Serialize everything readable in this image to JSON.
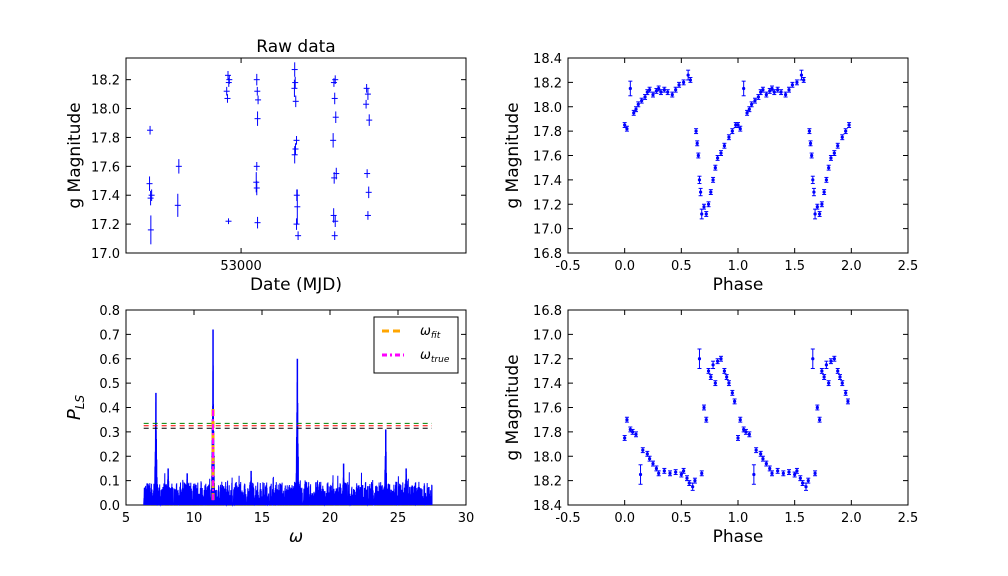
{
  "chart_data": [
    {
      "type": "scatter",
      "title": "Raw data",
      "xlabel": "Date (MJD)",
      "ylabel": "g Magnitude",
      "xlim": [
        52560,
        53860
      ],
      "ylim": [
        17.0,
        18.35
      ],
      "xticks": [
        53000
      ],
      "yticks": [
        17.0,
        17.2,
        17.4,
        17.6,
        17.8,
        18.0,
        18.2
      ],
      "inverted_y": false,
      "series": [
        {
          "color": "#0000ff",
          "marker": "plus-with-errorbar",
          "points": [
            [
              52652,
              17.85,
              0.03
            ],
            [
              52650,
              17.48,
              0.05
            ],
            [
              52654,
              17.38,
              0.05
            ],
            [
              52658,
              17.4,
              0.04
            ],
            [
              52655,
              17.16,
              0.1
            ],
            [
              52758,
              17.33,
              0.08
            ],
            [
              52762,
              17.6,
              0.05
            ],
            [
              52945,
              18.12,
              0.03
            ],
            [
              52950,
              18.23,
              0.03
            ],
            [
              52953,
              18.18,
              0.03
            ],
            [
              52948,
              18.07,
              0.03
            ],
            [
              52955,
              18.2,
              0.03
            ],
            [
              52952,
              17.22,
              0.02
            ],
            [
              53060,
              18.2,
              0.04
            ],
            [
              53062,
              18.12,
              0.03
            ],
            [
              53065,
              18.06,
              0.03
            ],
            [
              53063,
              17.93,
              0.05
            ],
            [
              53060,
              17.6,
              0.03
            ],
            [
              53058,
              17.49,
              0.07
            ],
            [
              53060,
              17.45,
              0.05
            ],
            [
              53063,
              17.21,
              0.04
            ],
            [
              53205,
              18.27,
              0.05
            ],
            [
              53207,
              18.18,
              0.04
            ],
            [
              53204,
              18.14,
              0.06
            ],
            [
              53209,
              18.05,
              0.04
            ],
            [
              53212,
              17.78,
              0.03
            ],
            [
              53205,
              17.68,
              0.06
            ],
            [
              53208,
              17.72,
              0.04
            ],
            [
              53215,
              17.32,
              0.12
            ],
            [
              53212,
              17.2,
              0.04
            ],
            [
              53218,
              17.12,
              0.03
            ],
            [
              53213,
              17.4,
              0.04
            ],
            [
              53355,
              18.18,
              0.03
            ],
            [
              53360,
              18.2,
              0.03
            ],
            [
              53358,
              18.07,
              0.04
            ],
            [
              53352,
              17.78,
              0.05
            ],
            [
              53362,
              17.94,
              0.04
            ],
            [
              53356,
              17.52,
              0.04
            ],
            [
              53354,
              17.26,
              0.05
            ],
            [
              53358,
              17.12,
              0.03
            ],
            [
              53364,
              17.55,
              0.04
            ],
            [
              53360,
              17.22,
              0.04
            ],
            [
              53480,
              18.14,
              0.03
            ],
            [
              53485,
              18.1,
              0.04
            ],
            [
              53478,
              18.03,
              0.03
            ],
            [
              53490,
              17.92,
              0.04
            ],
            [
              53482,
              17.55,
              0.03
            ],
            [
              53488,
              17.42,
              0.04
            ],
            [
              53485,
              17.26,
              0.03
            ]
          ]
        }
      ]
    },
    {
      "type": "scatter",
      "title": "",
      "xlabel": "Phase",
      "ylabel": "g Magnitude",
      "xlim": [
        -0.5,
        2.5
      ],
      "ylim": [
        16.8,
        18.4
      ],
      "xticks": [
        -0.5,
        0.0,
        0.5,
        1.0,
        1.5,
        2.0,
        2.5
      ],
      "yticks": [
        16.8,
        17.0,
        17.2,
        17.4,
        17.6,
        17.8,
        18.0,
        18.2,
        18.4
      ],
      "inverted_y": false,
      "series": [
        {
          "color": "#0000ff",
          "marker": "dot-with-errorbar",
          "points": [
            [
              0.0,
              17.85,
              0.02
            ],
            [
              0.02,
              17.82,
              0.02
            ],
            [
              0.05,
              18.15,
              0.06
            ],
            [
              0.08,
              17.95,
              0.02
            ],
            [
              0.1,
              17.98,
              0.02
            ],
            [
              0.12,
              18.02,
              0.02
            ],
            [
              0.15,
              18.05,
              0.02
            ],
            [
              0.18,
              18.08,
              0.02
            ],
            [
              0.2,
              18.12,
              0.02
            ],
            [
              0.22,
              18.14,
              0.02
            ],
            [
              0.25,
              18.1,
              0.02
            ],
            [
              0.28,
              18.13,
              0.02
            ],
            [
              0.3,
              18.15,
              0.02
            ],
            [
              0.32,
              18.12,
              0.02
            ],
            [
              0.35,
              18.14,
              0.02
            ],
            [
              0.38,
              18.12,
              0.02
            ],
            [
              0.42,
              18.1,
              0.02
            ],
            [
              0.45,
              18.14,
              0.02
            ],
            [
              0.48,
              18.18,
              0.02
            ],
            [
              0.52,
              18.2,
              0.02
            ],
            [
              0.56,
              18.26,
              0.04
            ],
            [
              0.58,
              18.22,
              0.02
            ],
            [
              0.63,
              17.8,
              0.02
            ],
            [
              0.64,
              17.7,
              0.02
            ],
            [
              0.65,
              17.6,
              0.02
            ],
            [
              0.66,
              17.4,
              0.03
            ],
            [
              0.67,
              17.3,
              0.03
            ],
            [
              0.68,
              17.12,
              0.04
            ],
            [
              0.7,
              17.18,
              0.02
            ],
            [
              0.72,
              17.12,
              0.02
            ],
            [
              0.74,
              17.2,
              0.02
            ],
            [
              0.76,
              17.3,
              0.02
            ],
            [
              0.78,
              17.4,
              0.02
            ],
            [
              0.8,
              17.5,
              0.02
            ],
            [
              0.82,
              17.58,
              0.02
            ],
            [
              0.85,
              17.62,
              0.02
            ],
            [
              0.88,
              17.68,
              0.02
            ],
            [
              0.92,
              17.75,
              0.02
            ],
            [
              0.95,
              17.8,
              0.02
            ],
            [
              0.98,
              17.85,
              0.02
            ]
          ]
        }
      ]
    },
    {
      "type": "line",
      "title": "",
      "xlabel": "ω",
      "ylabel": "P_LS",
      "xlim": [
        5,
        30
      ],
      "ylim": [
        0.0,
        0.8
      ],
      "xticks": [
        5,
        10,
        15,
        20,
        25,
        30
      ],
      "yticks": [
        0.0,
        0.1,
        0.2,
        0.3,
        0.4,
        0.5,
        0.6,
        0.7,
        0.8
      ],
      "periodogram_range": [
        6.3,
        27.5
      ],
      "peaks": [
        [
          7.2,
          0.46
        ],
        [
          11.4,
          0.72
        ],
        [
          17.6,
          0.6
        ],
        [
          24.1,
          0.31
        ],
        [
          8.1,
          0.15
        ],
        [
          9.5,
          0.13
        ],
        [
          14.2,
          0.14
        ],
        [
          21.0,
          0.17
        ],
        [
          25.6,
          0.15
        ]
      ],
      "noise_level": 0.06,
      "omega_fit": 11.4,
      "omega_true": 11.4,
      "thresholds": [
        0.335,
        0.325,
        0.315
      ],
      "threshold_colors": [
        "#008000",
        "#ff0000",
        "#000000"
      ],
      "legend": {
        "position": "top-right",
        "entries": [
          {
            "label_main": "ω",
            "label_sub": "fit",
            "color": "#ffa500",
            "style": "dashed"
          },
          {
            "label_main": "ω",
            "label_sub": "true",
            "color": "#ff00ff",
            "style": "dashdot"
          }
        ]
      },
      "series_color": "#0000ff"
    },
    {
      "type": "scatter",
      "title": "",
      "xlabel": "Phase",
      "ylabel": "g Magnitude",
      "xlim": [
        -0.5,
        2.5
      ],
      "ylim": [
        16.8,
        18.4
      ],
      "xticks": [
        -0.5,
        0.0,
        0.5,
        1.0,
        1.5,
        2.0,
        2.5
      ],
      "yticks": [
        16.8,
        17.0,
        17.2,
        17.4,
        17.6,
        17.8,
        18.0,
        18.2,
        18.4
      ],
      "inverted_y": true,
      "series": [
        {
          "color": "#0000ff",
          "marker": "dot-with-errorbar",
          "points": [
            [
              0.0,
              17.85,
              0.02
            ],
            [
              0.02,
              17.7,
              0.02
            ],
            [
              0.05,
              17.78,
              0.02
            ],
            [
              0.07,
              17.8,
              0.02
            ],
            [
              0.1,
              17.82,
              0.02
            ],
            [
              0.14,
              18.15,
              0.08
            ],
            [
              0.16,
              17.95,
              0.02
            ],
            [
              0.2,
              17.98,
              0.02
            ],
            [
              0.22,
              18.02,
              0.02
            ],
            [
              0.25,
              18.06,
              0.02
            ],
            [
              0.28,
              18.1,
              0.02
            ],
            [
              0.3,
              18.14,
              0.02
            ],
            [
              0.35,
              18.12,
              0.02
            ],
            [
              0.4,
              18.14,
              0.02
            ],
            [
              0.45,
              18.13,
              0.02
            ],
            [
              0.5,
              18.15,
              0.02
            ],
            [
              0.52,
              18.12,
              0.02
            ],
            [
              0.55,
              18.18,
              0.02
            ],
            [
              0.57,
              18.22,
              0.02
            ],
            [
              0.6,
              18.25,
              0.03
            ],
            [
              0.62,
              18.2,
              0.02
            ],
            [
              0.66,
              17.2,
              0.08
            ],
            [
              0.68,
              18.14,
              0.02
            ],
            [
              0.7,
              17.6,
              0.02
            ],
            [
              0.72,
              17.7,
              0.02
            ],
            [
              0.74,
              17.3,
              0.02
            ],
            [
              0.76,
              17.35,
              0.02
            ],
            [
              0.78,
              17.25,
              0.03
            ],
            [
              0.8,
              17.4,
              0.02
            ],
            [
              0.82,
              17.22,
              0.02
            ],
            [
              0.85,
              17.2,
              0.02
            ],
            [
              0.88,
              17.3,
              0.02
            ],
            [
              0.9,
              17.35,
              0.02
            ],
            [
              0.92,
              17.4,
              0.02
            ],
            [
              0.95,
              17.48,
              0.02
            ],
            [
              0.97,
              17.55,
              0.02
            ]
          ]
        }
      ]
    }
  ]
}
